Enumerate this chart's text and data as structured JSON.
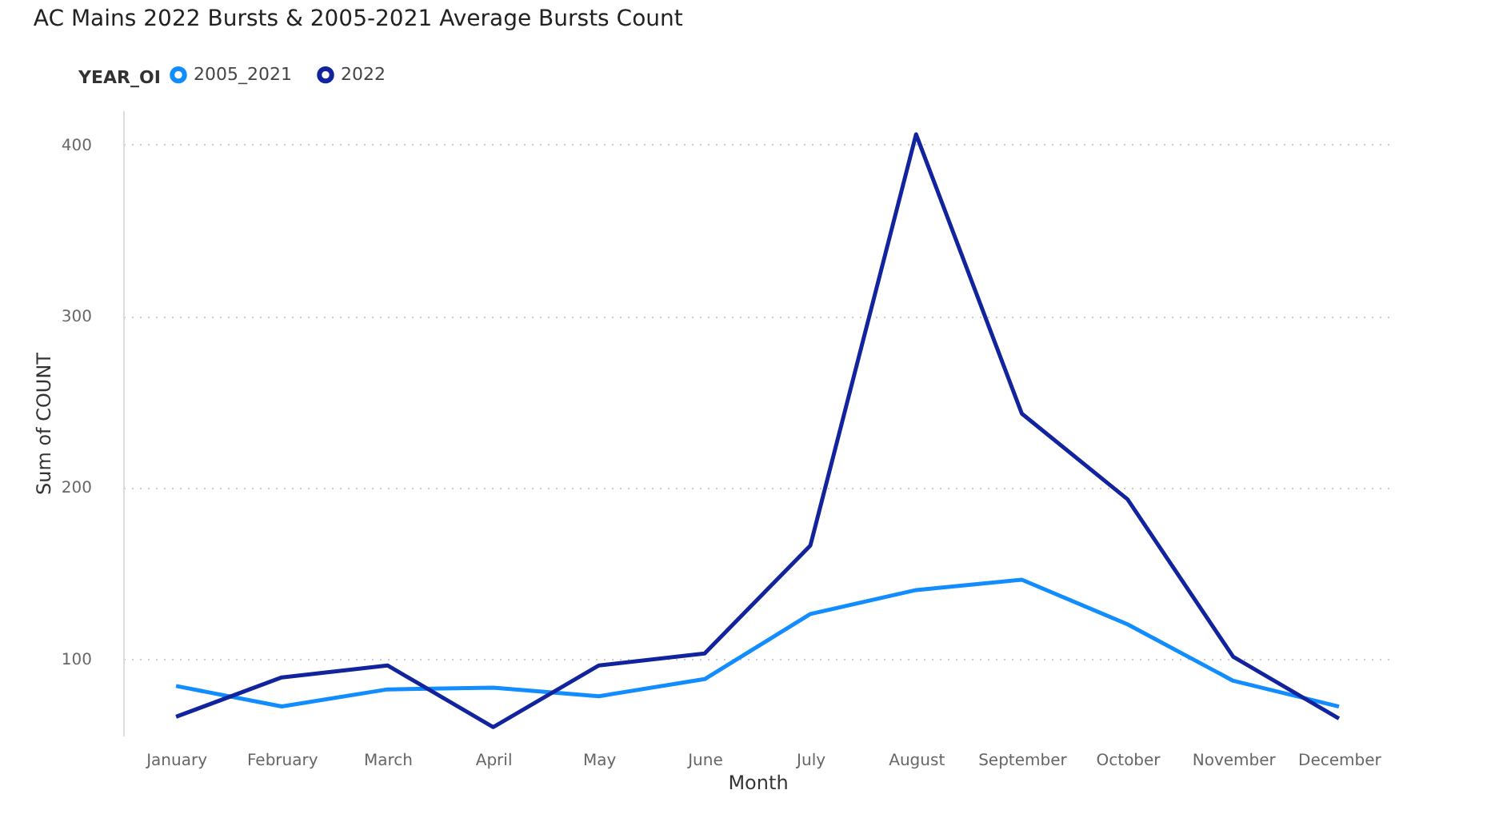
{
  "chart_data": {
    "type": "line",
    "title": "AC Mains 2022 Bursts & 2005-2021 Average Bursts Count",
    "xlabel": "Month",
    "ylabel": "Sum of COUNT",
    "legend_title": "YEAR_OI",
    "legend": "top left",
    "categories": [
      "January",
      "February",
      "March",
      "April",
      "May",
      "June",
      "July",
      "August",
      "September",
      "October",
      "November",
      "December"
    ],
    "series": [
      {
        "name": "2005_2021",
        "color": "#118dff",
        "values": [
          84,
          72,
          82,
          83,
          78,
          88,
          126,
          140,
          146,
          120,
          87,
          72
        ]
      },
      {
        "name": "2022",
        "color": "#12239e",
        "values": [
          66,
          89,
          96,
          60,
          96,
          103,
          166,
          406,
          243,
          193,
          101,
          65
        ]
      }
    ],
    "ylim": [
      55,
      420
    ],
    "yticks": [
      100,
      200,
      300,
      400
    ],
    "grid": "y",
    "marker": "none",
    "line_style": "solid"
  }
}
